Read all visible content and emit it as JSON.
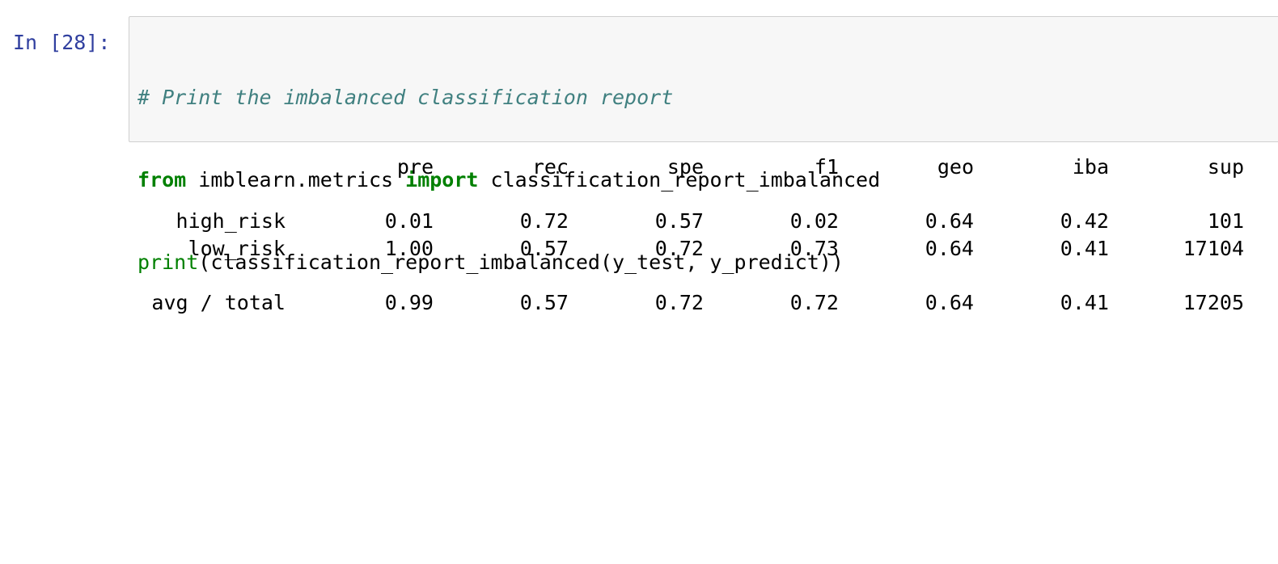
{
  "cell": {
    "prompt": "In [28]:",
    "code": {
      "line1_comment": "# Print the imbalanced classification report",
      "line2_kw_from": "from",
      "line2_module": " imblearn.metrics ",
      "line2_kw_import": "import",
      "line2_name": " classification_report_imbalanced",
      "line3_builtin": "print",
      "line3_rest": "(classification_report_imbalanced(y_test, y_predict))"
    }
  },
  "report": {
    "headers": [
      "pre",
      "rec",
      "spe",
      "f1",
      "geo",
      "iba",
      "sup"
    ],
    "rows": [
      {
        "label": "high_risk",
        "values": [
          "0.01",
          "0.72",
          "0.57",
          "0.02",
          "0.64",
          "0.42",
          "101"
        ]
      },
      {
        "label": "low_risk",
        "values": [
          "1.00",
          "0.57",
          "0.72",
          "0.73",
          "0.64",
          "0.41",
          "17104"
        ]
      }
    ],
    "total": {
      "label": "avg / total",
      "values": [
        "0.99",
        "0.57",
        "0.72",
        "0.72",
        "0.64",
        "0.41",
        "17205"
      ]
    }
  }
}
